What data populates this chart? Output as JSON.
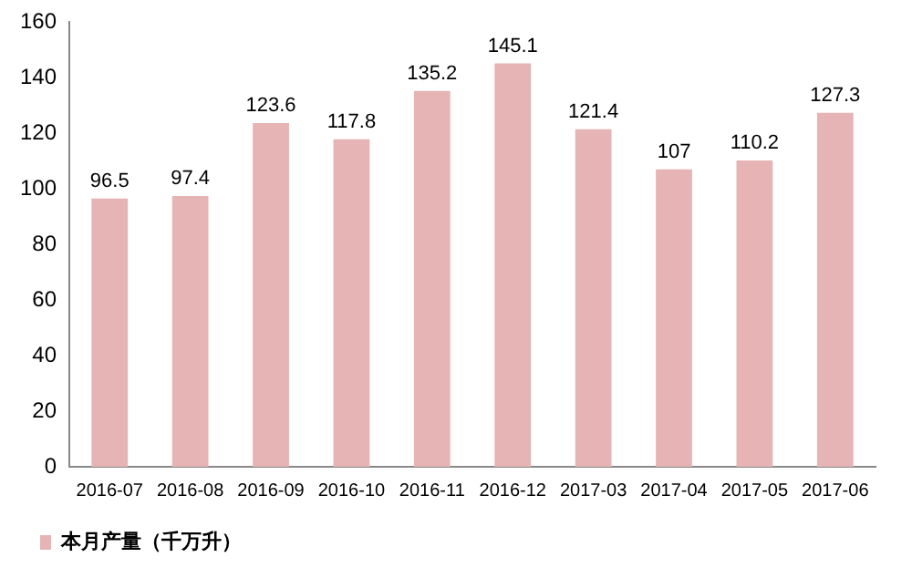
{
  "chart_data": {
    "type": "bar",
    "categories": [
      "2016-07",
      "2016-08",
      "2016-09",
      "2016-10",
      "2016-11",
      "2016-12",
      "2017-03",
      "2017-04",
      "2017-05",
      "2017-06"
    ],
    "series": [
      {
        "name": "本月产量（千万升）",
        "color": "#e6b4b4",
        "values": [
          96.5,
          97.4,
          123.6,
          117.8,
          135.2,
          145.1,
          121.4,
          107,
          110.2,
          127.3
        ]
      }
    ],
    "ylim": [
      0,
      160
    ],
    "yticks": [
      0,
      20,
      40,
      60,
      80,
      100,
      120,
      140,
      160
    ],
    "grid": false,
    "legend": "bottom left",
    "data_labels": true
  }
}
